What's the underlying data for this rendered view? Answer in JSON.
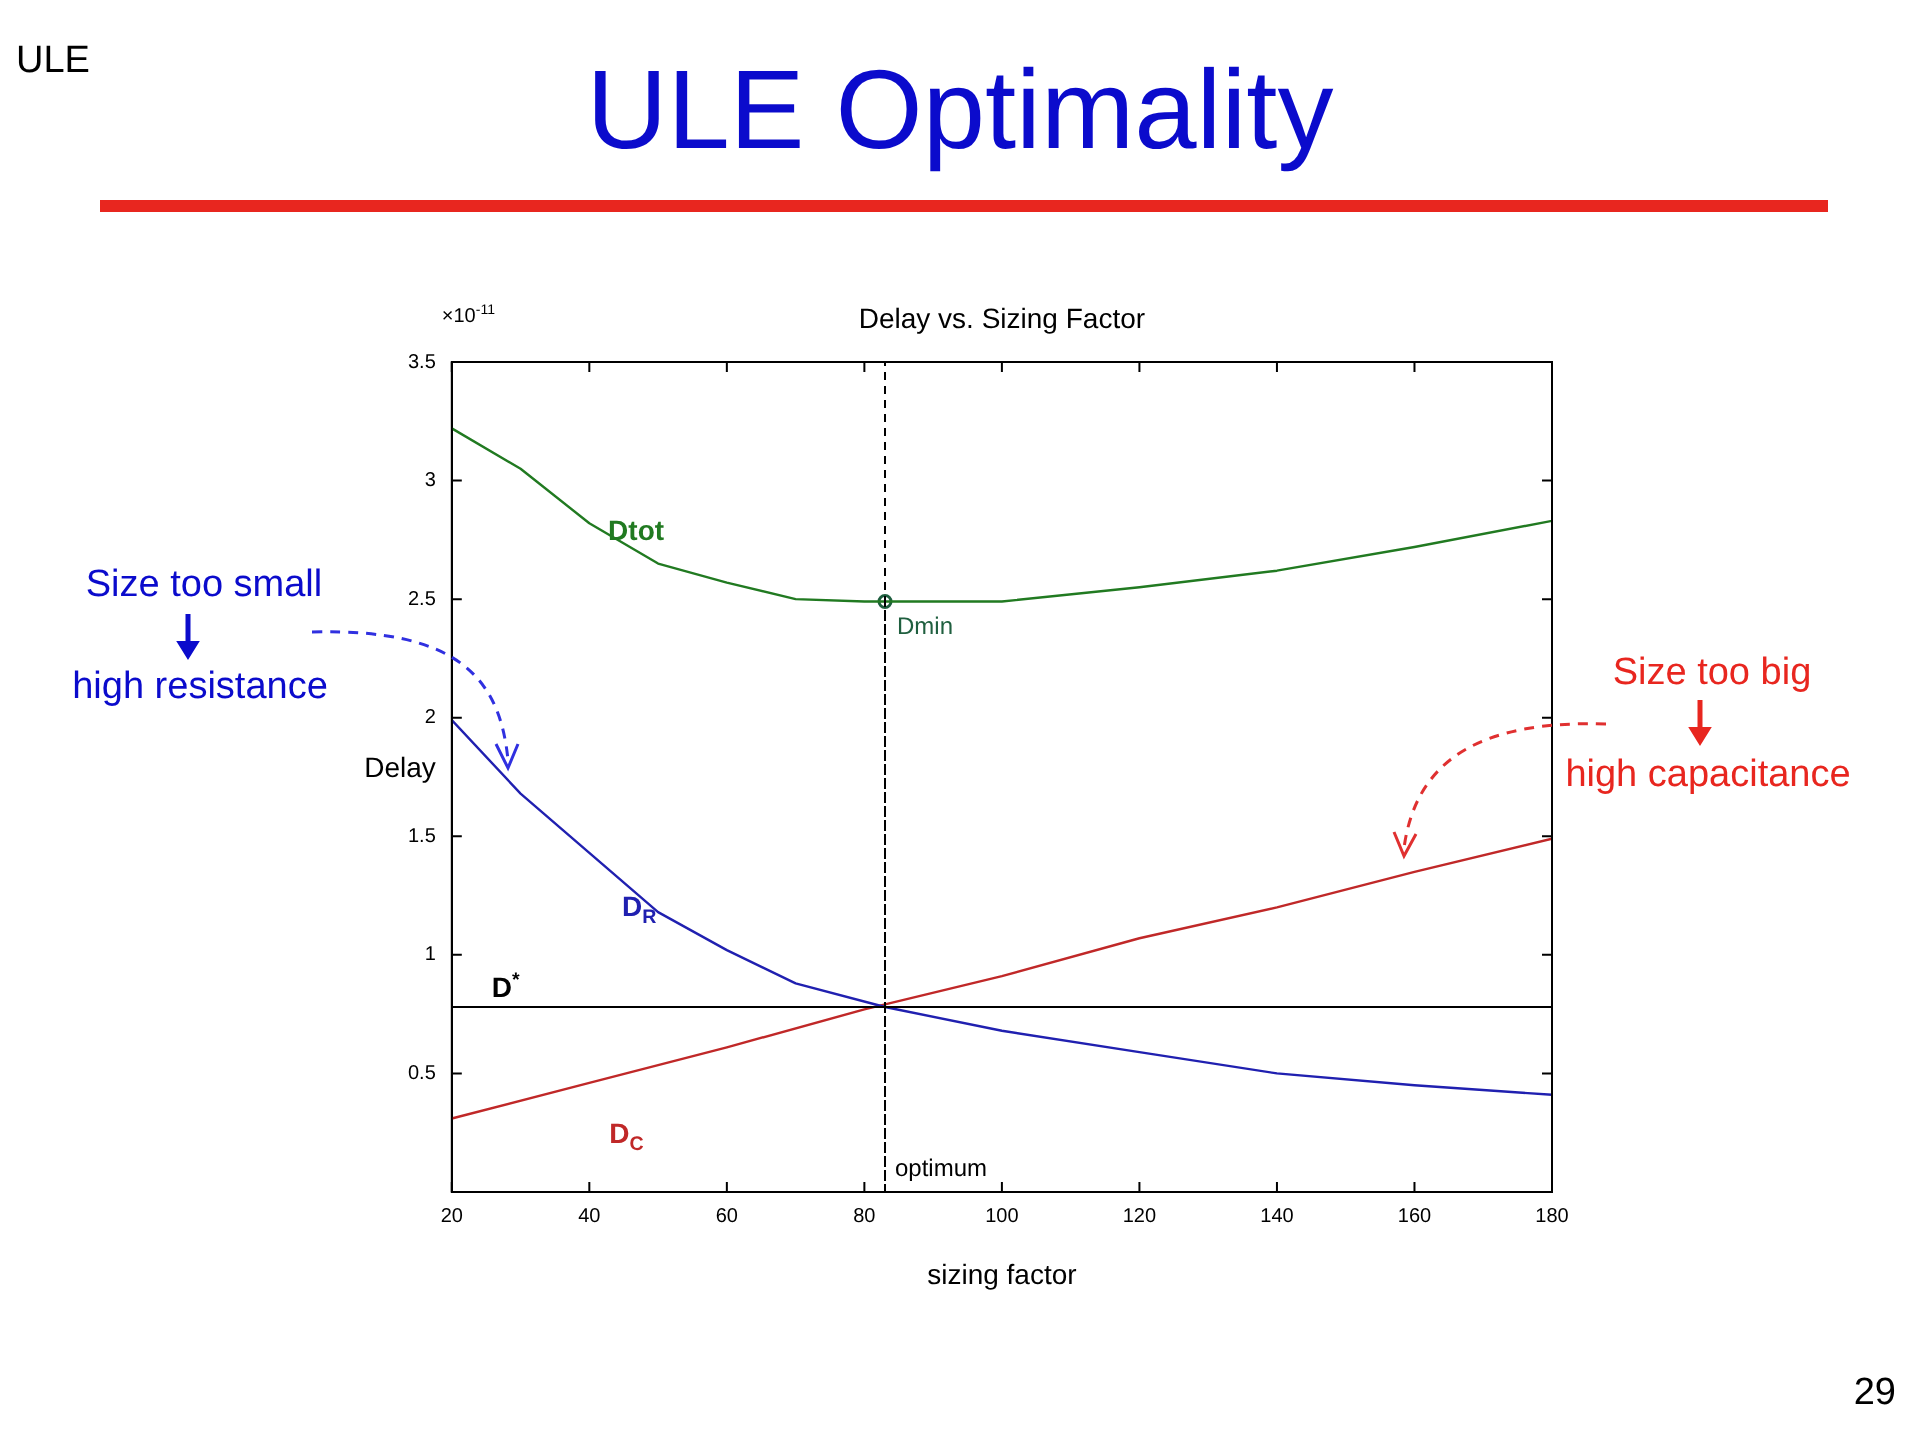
{
  "chart_data": {
    "type": "line",
    "title": "ULE Optimality",
    "subtitle": "Delay vs. Sizing Factor",
    "xlabel": "sizing factor",
    "ylabel": "Delay",
    "annotations": [
      "ULE",
      "29",
      "×10$^{-11}$",
      "Size too small",
      "high resistance",
      "Size too big",
      "high capacitance"
    ],
    "series": [
      {
        "name": "Dtot",
        "color": "#217a21",
        "x": [
          20,
          30,
          40,
          50,
          60,
          70,
          80,
          83,
          100,
          120,
          140,
          160,
          180
        ],
        "values": [
          3.22,
          3.05,
          2.82,
          2.65,
          2.57,
          2.5,
          2.49,
          2.49,
          2.49,
          2.55,
          2.62,
          2.72,
          2.83
        ]
      },
      {
        "name": "D$_{R}$",
        "color": "#2020b0",
        "x": [
          20,
          30,
          40,
          50,
          60,
          70,
          83,
          100,
          120,
          140,
          160,
          180
        ],
        "values": [
          1.99,
          1.68,
          1.43,
          1.18,
          1.02,
          0.88,
          0.78,
          0.68,
          0.59,
          0.5,
          0.45,
          0.41
        ]
      },
      {
        "name": "D$_{C}$",
        "color": "#c02828",
        "x": [
          20,
          40,
          60,
          80,
          100,
          120,
          140,
          160,
          180
        ],
        "values": [
          0.31,
          0.46,
          0.61,
          0.77,
          0.91,
          1.07,
          1.2,
          1.35,
          1.49
        ]
      },
      {
        "name": "Dmin",
        "type": "scatter",
        "marker": "circle",
        "color": "#1f5f3f",
        "x": [
          83
        ],
        "values": [
          2.49
        ]
      }
    ],
    "ref_lines": [
      {
        "axis": "x",
        "value": 83,
        "label": "optimum",
        "line_style": "dashed",
        "color": "#000000"
      },
      {
        "axis": "y",
        "value": 0.78,
        "label": "D$^{*}$",
        "line_style": "solid",
        "color": "#000000"
      }
    ],
    "xlim": [
      20,
      180
    ],
    "xticks": [
      20,
      40,
      60,
      80,
      100,
      120,
      140,
      160,
      180
    ],
    "ylim": [
      0,
      3.5
    ],
    "yticks": [
      0.5,
      1,
      1.5,
      2,
      2.5,
      3,
      3.5
    ],
    "grid": false,
    "legend": false,
    "marker": "none",
    "line_style": "solid"
  }
}
